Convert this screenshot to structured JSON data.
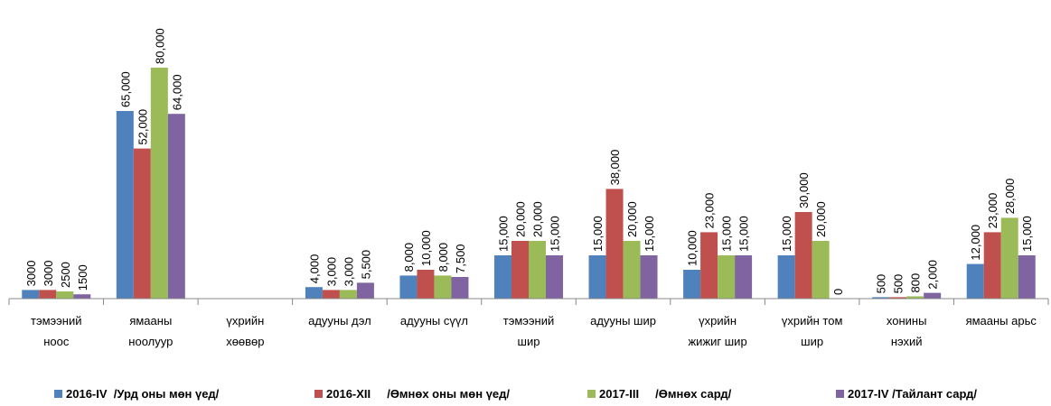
{
  "chart_data": {
    "type": "bar",
    "categories": [
      [
        "тэмээний",
        "ноос"
      ],
      [
        "ямааны",
        "ноолуур"
      ],
      [
        "үхрийн",
        "хөөвөр"
      ],
      [
        "адууны дэл"
      ],
      [
        "адууны сүүл"
      ],
      [
        "тэмээний",
        "шир"
      ],
      [
        "адууны шир"
      ],
      [
        "үхрийн",
        "жижиг шир"
      ],
      [
        "үхрийн том",
        "шир"
      ],
      [
        "хонины",
        "нэхий"
      ],
      [
        "ямааны арьс"
      ]
    ],
    "series": [
      {
        "name": "2016-IV  /Урд оны мөн үед/",
        "color": "#4f81bd",
        "values": [
          3000,
          65000,
          null,
          4000,
          8000,
          15000,
          15000,
          10000,
          15000,
          500,
          12000
        ],
        "value_labels": [
          "3000",
          "65,000",
          null,
          "4,000",
          "8,000",
          "15,000",
          "15,000",
          "10,000",
          "15,000",
          "500",
          "12,000"
        ]
      },
      {
        "name": "2016-XII     /Өмнөх оны мөн үед/",
        "color": "#c0504d",
        "values": [
          3000,
          52000,
          null,
          3000,
          10000,
          20000,
          38000,
          23000,
          30000,
          500,
          23000
        ],
        "value_labels": [
          "3000",
          "52,000",
          null,
          "3,000",
          "10,000",
          "20,000",
          "38,000",
          "23,000",
          "30,000",
          "500",
          "23,000"
        ]
      },
      {
        "name": "2017-III     /Өмнөх сард/",
        "color": "#9bbb59",
        "values": [
          2500,
          80000,
          null,
          3000,
          8000,
          20000,
          20000,
          15000,
          20000,
          800,
          28000
        ],
        "value_labels": [
          "2500",
          "80,000",
          null,
          "3,000",
          "8,000",
          "20,000",
          "20,000",
          "15,000",
          "20,000",
          "800",
          "28,000"
        ]
      },
      {
        "name": "2017-IV /Тайлант сард/",
        "color": "#8064a2",
        "values": [
          1500,
          64000,
          null,
          5500,
          7500,
          15000,
          15000,
          15000,
          0,
          2000,
          15000
        ],
        "value_labels": [
          "1500",
          "64,000",
          null,
          "5,500",
          "7,500",
          "15,000",
          "15,000",
          "15,000",
          "0",
          "2,000",
          "15,000"
        ]
      }
    ]
  }
}
